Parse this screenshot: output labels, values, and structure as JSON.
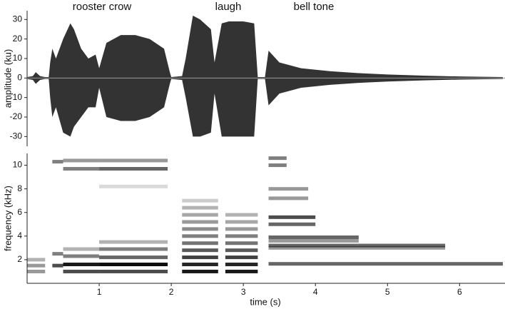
{
  "chart_data": [
    {
      "type": "waveform",
      "annotations": [
        "rooster crow",
        "laugh",
        "bell tone"
      ],
      "ylabel": "amplitude (ku)",
      "xlim": [
        0,
        6.63
      ],
      "ylim": [
        -35,
        34.5
      ],
      "yticks": [
        -30,
        -20,
        -10,
        0,
        10,
        20,
        30
      ],
      "color": "#333333",
      "x": [
        0,
        0.08,
        0.12,
        0.18,
        0.25,
        0.3,
        0.32,
        0.35,
        0.4,
        0.5,
        0.6,
        0.65,
        0.75,
        0.85,
        0.95,
        1.0,
        1.1,
        1.3,
        1.5,
        1.7,
        1.9,
        1.98,
        2.0,
        2.15,
        2.2,
        2.3,
        2.4,
        2.55,
        2.6,
        2.7,
        2.8,
        3.0,
        3.15,
        3.2,
        3.3,
        3.35,
        3.4,
        3.5,
        3.8,
        4.2,
        4.6,
        5.0,
        5.5,
        6.0,
        6.6
      ],
      "upper": [
        0.5,
        1,
        3,
        1,
        0.5,
        0.5,
        8,
        15,
        10,
        20,
        28,
        25,
        15,
        10,
        12,
        5,
        18,
        22,
        22,
        20,
        15,
        3,
        0.5,
        1,
        10,
        32,
        30,
        25,
        8,
        28,
        29,
        29,
        28,
        0.5,
        0.5,
        14,
        12,
        8,
        5,
        3.5,
        2.5,
        1.8,
        1.2,
        0.8,
        0.5
      ],
      "lower": [
        -0.5,
        -1,
        -3,
        -1,
        -0.5,
        -0.5,
        -10,
        -20,
        -15,
        -28,
        -30,
        -25,
        -20,
        -15,
        -15,
        -5,
        -20,
        -22,
        -22,
        -20,
        -15,
        -3,
        -0.5,
        -1,
        -10,
        -30,
        -30,
        -28,
        -8,
        -30,
        -30,
        -30,
        -30,
        -0.5,
        -0.5,
        -14,
        -12,
        -8,
        -5,
        -3.5,
        -2.5,
        -1.8,
        -1.2,
        -0.8,
        -0.5
      ]
    },
    {
      "type": "spectrogram",
      "xlabel": "time (s)",
      "ylabel": "frequency (kHz)",
      "xlim": [
        0,
        6.63
      ],
      "ylim": [
        0,
        11
      ],
      "xticks": [
        1,
        2,
        3,
        4,
        5,
        6
      ],
      "yticks": [
        2,
        4,
        6,
        8,
        10
      ],
      "bands": [
        {
          "x": [
            0.0,
            0.25
          ],
          "y": 1.0,
          "intensity": 0.4
        },
        {
          "x": [
            0.0,
            0.25
          ],
          "y": 1.5,
          "intensity": 0.4
        },
        {
          "x": [
            0.0,
            0.25
          ],
          "y": 2.0,
          "intensity": 0.3
        },
        {
          "x": [
            0.35,
            0.5
          ],
          "y": 1.5,
          "intensity": 0.7
        },
        {
          "x": [
            0.35,
            0.5
          ],
          "y": 2.5,
          "intensity": 0.5
        },
        {
          "x": [
            0.35,
            0.5
          ],
          "y": 10.3,
          "intensity": 0.5
        },
        {
          "x": [
            0.5,
            1.0
          ],
          "y": 1.0,
          "intensity": 0.7
        },
        {
          "x": [
            0.5,
            1.0
          ],
          "y": 1.6,
          "intensity": 0.9
        },
        {
          "x": [
            0.5,
            1.0
          ],
          "y": 2.3,
          "intensity": 0.5
        },
        {
          "x": [
            0.5,
            1.0
          ],
          "y": 2.9,
          "intensity": 0.3
        },
        {
          "x": [
            0.5,
            1.0
          ],
          "y": 9.7,
          "intensity": 0.5
        },
        {
          "x": [
            0.5,
            1.0
          ],
          "y": 10.4,
          "intensity": 0.4
        },
        {
          "x": [
            1.0,
            1.95
          ],
          "y": 1.0,
          "intensity": 0.7
        },
        {
          "x": [
            1.0,
            1.95
          ],
          "y": 1.6,
          "intensity": 0.95
        },
        {
          "x": [
            1.0,
            1.95
          ],
          "y": 2.2,
          "intensity": 0.6
        },
        {
          "x": [
            1.0,
            1.95
          ],
          "y": 2.9,
          "intensity": 0.5
        },
        {
          "x": [
            1.0,
            1.95
          ],
          "y": 3.5,
          "intensity": 0.3
        },
        {
          "x": [
            1.0,
            1.95
          ],
          "y": 8.2,
          "intensity": 0.15
        },
        {
          "x": [
            1.0,
            1.95
          ],
          "y": 9.7,
          "intensity": 0.6
        },
        {
          "x": [
            1.0,
            1.95
          ],
          "y": 10.4,
          "intensity": 0.4
        },
        {
          "x": [
            2.15,
            2.65
          ],
          "y": 1.0,
          "intensity": 0.9
        },
        {
          "x": [
            2.15,
            2.65
          ],
          "y": 1.6,
          "intensity": 0.85
        },
        {
          "x": [
            2.15,
            2.65
          ],
          "y": 2.2,
          "intensity": 0.75
        },
        {
          "x": [
            2.15,
            2.65
          ],
          "y": 2.8,
          "intensity": 0.65
        },
        {
          "x": [
            2.15,
            2.65
          ],
          "y": 3.4,
          "intensity": 0.55
        },
        {
          "x": [
            2.15,
            2.65
          ],
          "y": 4.0,
          "intensity": 0.5
        },
        {
          "x": [
            2.15,
            2.65
          ],
          "y": 4.6,
          "intensity": 0.45
        },
        {
          "x": [
            2.15,
            2.65
          ],
          "y": 5.2,
          "intensity": 0.4
        },
        {
          "x": [
            2.15,
            2.65
          ],
          "y": 5.8,
          "intensity": 0.35
        },
        {
          "x": [
            2.15,
            2.65
          ],
          "y": 6.4,
          "intensity": 0.3
        },
        {
          "x": [
            2.15,
            2.65
          ],
          "y": 7.0,
          "intensity": 0.2
        },
        {
          "x": [
            2.75,
            3.2
          ],
          "y": 1.0,
          "intensity": 0.9
        },
        {
          "x": [
            2.75,
            3.2
          ],
          "y": 1.6,
          "intensity": 0.85
        },
        {
          "x": [
            2.75,
            3.2
          ],
          "y": 2.2,
          "intensity": 0.75
        },
        {
          "x": [
            2.75,
            3.2
          ],
          "y": 2.8,
          "intensity": 0.65
        },
        {
          "x": [
            2.75,
            3.2
          ],
          "y": 3.4,
          "intensity": 0.55
        },
        {
          "x": [
            2.75,
            3.2
          ],
          "y": 4.0,
          "intensity": 0.5
        },
        {
          "x": [
            2.75,
            3.2
          ],
          "y": 4.6,
          "intensity": 0.4
        },
        {
          "x": [
            2.75,
            3.2
          ],
          "y": 5.2,
          "intensity": 0.35
        },
        {
          "x": [
            2.75,
            3.2
          ],
          "y": 5.8,
          "intensity": 0.3
        },
        {
          "x": [
            3.35,
            3.6
          ],
          "y": 10.6,
          "intensity": 0.5
        },
        {
          "x": [
            3.35,
            3.6
          ],
          "y": 10.0,
          "intensity": 0.5
        },
        {
          "x": [
            3.35,
            3.9
          ],
          "y": 8.0,
          "intensity": 0.4
        },
        {
          "x": [
            3.35,
            3.9
          ],
          "y": 7.2,
          "intensity": 0.4
        },
        {
          "x": [
            3.35,
            4.0
          ],
          "y": 5.6,
          "intensity": 0.7
        },
        {
          "x": [
            3.35,
            4.0
          ],
          "y": 5.0,
          "intensity": 0.6
        },
        {
          "x": [
            3.35,
            4.6
          ],
          "y": 3.9,
          "intensity": 0.6
        },
        {
          "x": [
            3.35,
            4.6
          ],
          "y": 3.6,
          "intensity": 0.4
        },
        {
          "x": [
            3.35,
            5.8
          ],
          "y": 3.2,
          "intensity": 0.6
        },
        {
          "x": [
            3.35,
            5.8
          ],
          "y": 3.0,
          "intensity": 0.4
        },
        {
          "x": [
            3.35,
            6.6
          ],
          "y": 1.65,
          "intensity": 0.6
        }
      ]
    }
  ]
}
